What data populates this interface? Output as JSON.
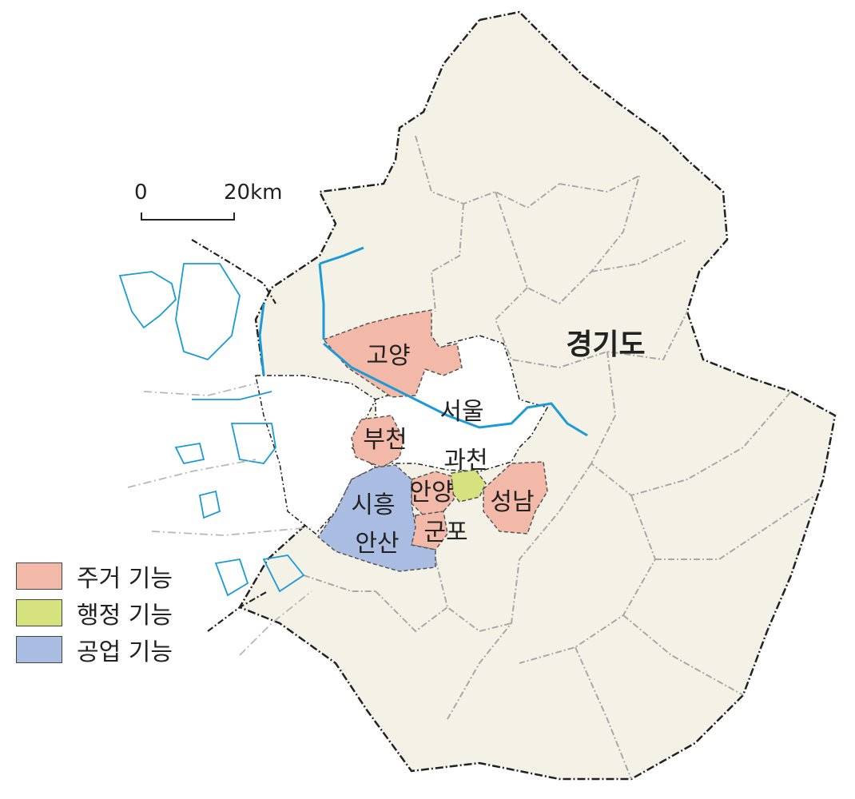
{
  "map": {
    "province_label": "경기도",
    "province_label_color": "#d6145f",
    "land_color": "#f4f1e6",
    "water_color": "#1a9ad6",
    "regions": [
      {
        "key": "goyang",
        "label": "고양",
        "function": "residential"
      },
      {
        "key": "seoul",
        "label": "서울",
        "function": "none"
      },
      {
        "key": "bucheon",
        "label": "부천",
        "function": "residential"
      },
      {
        "key": "gwacheon",
        "label": "과천",
        "function": "administrative"
      },
      {
        "key": "anyang",
        "label": "안양",
        "function": "residential"
      },
      {
        "key": "seongnam",
        "label": "성남",
        "function": "residential"
      },
      {
        "key": "siheung",
        "label": "시흥",
        "function": "industrial"
      },
      {
        "key": "ansan",
        "label": "안산",
        "function": "industrial"
      },
      {
        "key": "gunpo",
        "label": "군포",
        "function": "residential"
      }
    ]
  },
  "scale": {
    "start": "0",
    "end": "20km"
  },
  "legend": {
    "items": [
      {
        "label": "주거 기능",
        "color": "#f2b8a8"
      },
      {
        "label": "행정 기능",
        "color": "#d6e27e"
      },
      {
        "label": "공업 기능",
        "color": "#a9bde2"
      }
    ]
  }
}
